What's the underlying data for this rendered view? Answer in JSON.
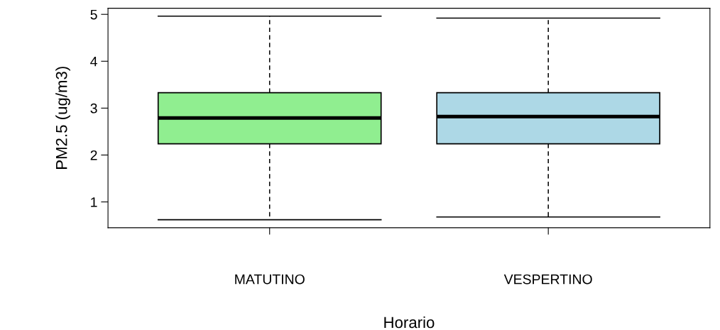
{
  "chart_data": {
    "type": "box",
    "xlabel": "Horario",
    "ylabel": "PM2.5 (ug/m3)",
    "categories": [
      "MATUTINO",
      "VESPERTINO"
    ],
    "colors": [
      "#90ee90",
      "#add8e6"
    ],
    "boxes": [
      {
        "low": 0.62,
        "q1": 2.24,
        "median": 2.79,
        "q3": 3.33,
        "high": 4.96
      },
      {
        "low": 0.68,
        "q1": 2.24,
        "median": 2.82,
        "q3": 3.33,
        "high": 4.92
      }
    ],
    "ylim": [
      0.45,
      5.13
    ],
    "yticks": [
      1,
      2,
      3,
      4,
      5
    ],
    "grid": false,
    "legend": false
  }
}
